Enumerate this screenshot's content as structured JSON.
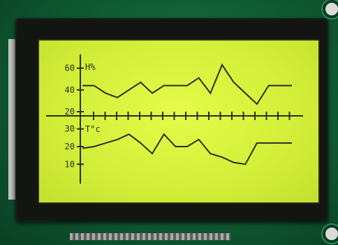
{
  "chart_data": [
    {
      "type": "line",
      "title": "H%",
      "ylim": [
        20,
        70
      ],
      "yticks": [
        "20",
        "40",
        "60"
      ],
      "x": [
        0,
        1,
        2,
        3,
        4,
        5,
        6,
        7,
        8,
        9,
        10,
        11,
        12,
        13,
        14,
        15,
        16,
        17,
        18
      ],
      "values": [
        44,
        44,
        37,
        33,
        40,
        47,
        37,
        44,
        44,
        44,
        51,
        37,
        63,
        47,
        37,
        27,
        44,
        44,
        44
      ]
    },
    {
      "type": "line",
      "title": "T°c",
      "ylim": [
        5,
        35
      ],
      "yticks": [
        "10",
        "20",
        "30"
      ],
      "x": [
        0,
        1,
        2,
        3,
        4,
        5,
        6,
        7,
        8,
        9,
        10,
        11,
        12,
        13,
        14,
        15,
        16,
        17,
        18
      ],
      "values": [
        19,
        20,
        22,
        24,
        27,
        22,
        16,
        27,
        20,
        20,
        24,
        16,
        14,
        11,
        10,
        22,
        22,
        22,
        22
      ]
    }
  ],
  "x_axis": {
    "tick_count": 18
  },
  "colors": {
    "lcd_background": "#d4f03a",
    "lcd_ink": "#2a2f20",
    "pcb": "#0f5a32"
  }
}
